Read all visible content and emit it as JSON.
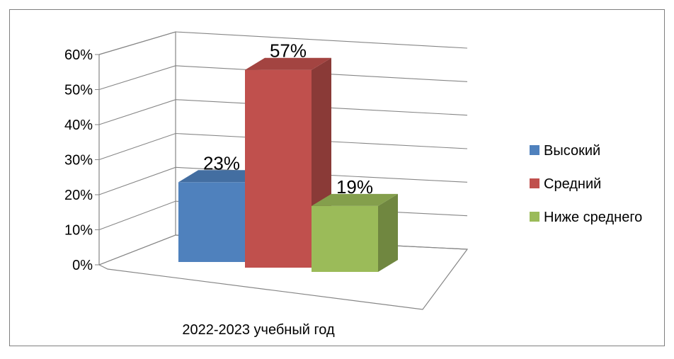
{
  "chart_data": {
    "type": "bar",
    "title": "",
    "categories": [
      "2022-2023 учебный год"
    ],
    "series": [
      {
        "name": "Высокий",
        "values": [
          23
        ],
        "label": "23%",
        "color": "#4F81BD"
      },
      {
        "name": "Средний",
        "values": [
          57
        ],
        "label": "57%",
        "color": "#C0504D"
      },
      {
        "name": "Ниже среднего",
        "values": [
          19
        ],
        "label": "19%",
        "color": "#9BBB59"
      }
    ],
    "y_ticks": [
      "0%",
      "10%",
      "20%",
      "30%",
      "40%",
      "50%",
      "60%"
    ],
    "ylim": [
      0,
      60
    ],
    "y_unit": "%",
    "xlabel": "",
    "ylabel": "",
    "grid": true,
    "legend_position": "right",
    "style": "3d-clustered-column"
  }
}
